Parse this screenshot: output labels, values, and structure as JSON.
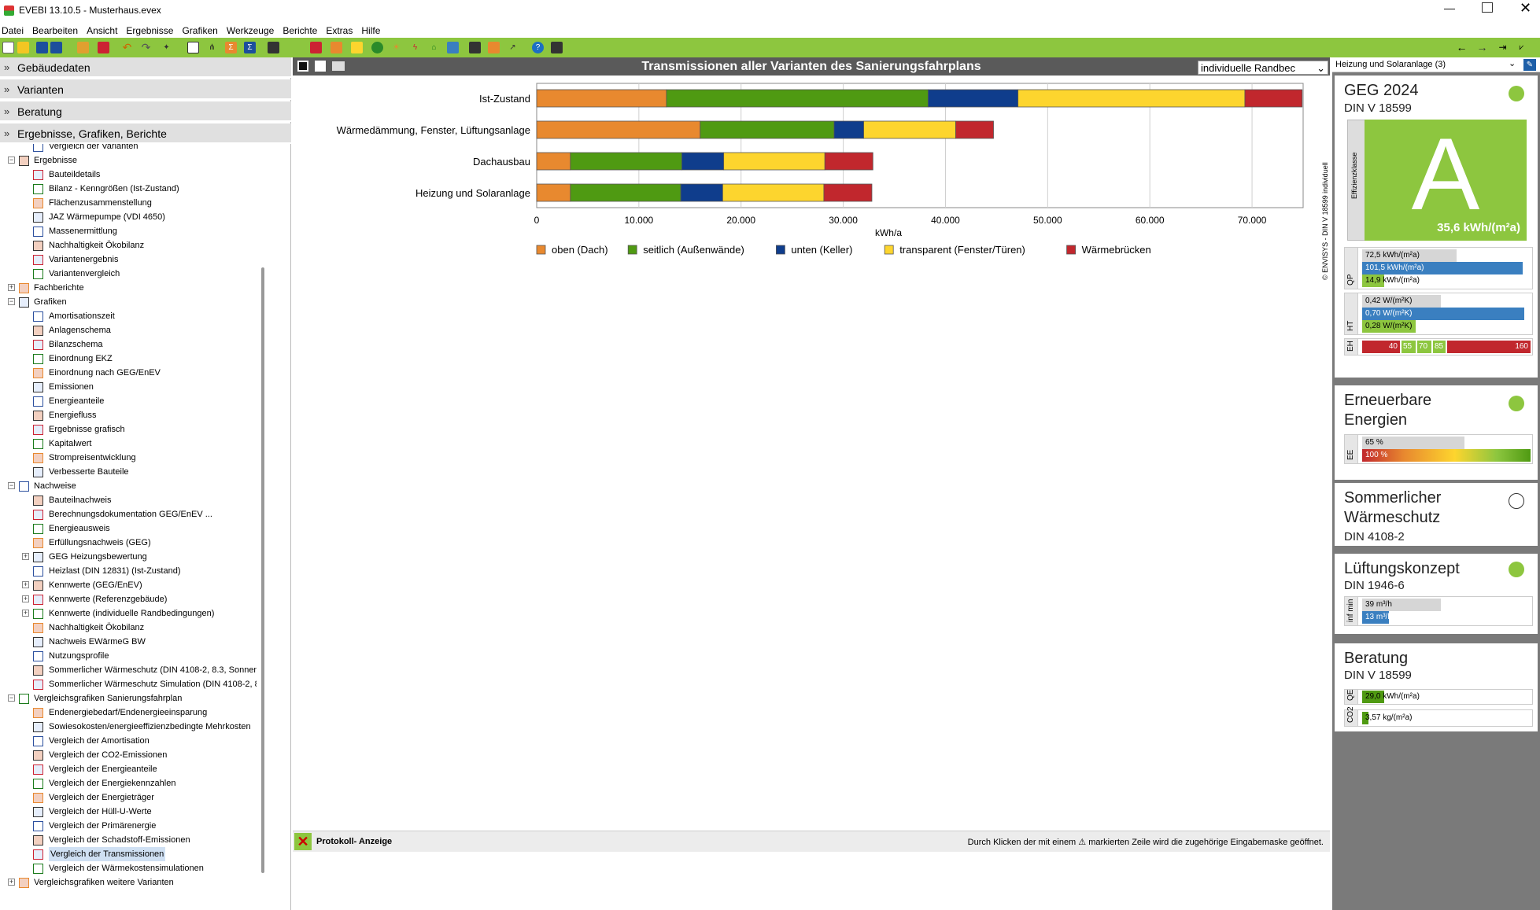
{
  "window": {
    "title": "EVEBI 13.10.5 - Musterhaus.evex"
  },
  "menu": [
    "Datei",
    "Bearbeiten",
    "Ansicht",
    "Ergebnisse",
    "Grafiken",
    "Werkzeuge",
    "Berichte",
    "Extras",
    "Hilfe"
  ],
  "sections": [
    "Gebäudedaten",
    "Varianten",
    "Beratung",
    "Ergebnisse, Grafiken, Berichte"
  ],
  "tree": [
    {
      "label": "Vergleich der Varianten",
      "level": 2
    },
    {
      "label": "Ergebnisse",
      "level": 1,
      "exp": "-"
    },
    {
      "label": "Bauteildetails",
      "level": 2
    },
    {
      "label": "Bilanz - Kenngrößen (Ist-Zustand)",
      "level": 2
    },
    {
      "label": "Flächenzusammenstellung",
      "level": 2
    },
    {
      "label": "JAZ Wärmepumpe (VDI 4650)",
      "level": 2
    },
    {
      "label": "Massenermittlung",
      "level": 2
    },
    {
      "label": "Nachhaltigkeit Ökobilanz",
      "level": 2
    },
    {
      "label": "Variantenergebnis",
      "level": 2
    },
    {
      "label": "Variantenvergleich",
      "level": 2
    },
    {
      "label": "Fachberichte",
      "level": 1,
      "exp": "+"
    },
    {
      "label": "Grafiken",
      "level": 1,
      "exp": "-"
    },
    {
      "label": "Amortisationszeit",
      "level": 2
    },
    {
      "label": "Anlagenschema",
      "level": 2
    },
    {
      "label": "Bilanzschema",
      "level": 2
    },
    {
      "label": "Einordnung EKZ",
      "level": 2
    },
    {
      "label": "Einordnung nach GEG/EnEV",
      "level": 2
    },
    {
      "label": "Emissionen",
      "level": 2
    },
    {
      "label": "Energieanteile",
      "level": 2
    },
    {
      "label": "Energiefluss",
      "level": 2
    },
    {
      "label": "Ergebnisse grafisch",
      "level": 2
    },
    {
      "label": "Kapitalwert",
      "level": 2
    },
    {
      "label": "Strompreisentwicklung",
      "level": 2
    },
    {
      "label": "Verbesserte Bauteile",
      "level": 2
    },
    {
      "label": "Nachweise",
      "level": 1,
      "exp": "-"
    },
    {
      "label": "Bauteilnachweis",
      "level": 2
    },
    {
      "label": "Berechnungsdokumentation GEG/EnEV ...",
      "level": 2
    },
    {
      "label": "Energieausweis",
      "level": 2
    },
    {
      "label": "Erfüllungsnachweis (GEG)",
      "level": 2
    },
    {
      "label": "GEG Heizungsbewertung",
      "level": 2,
      "exp": "+"
    },
    {
      "label": "Heizlast (DIN 12831) (Ist-Zustand)",
      "level": 2
    },
    {
      "label": "Kennwerte (GEG/EnEV)",
      "level": 2,
      "exp": "+"
    },
    {
      "label": "Kennwerte (Referenzgebäude)",
      "level": 2,
      "exp": "+"
    },
    {
      "label": "Kennwerte (individuelle Randbedingungen)",
      "level": 2,
      "exp": "+"
    },
    {
      "label": "Nachhaltigkeit Ökobilanz",
      "level": 2
    },
    {
      "label": "Nachweis EWärmeG BW",
      "level": 2
    },
    {
      "label": "Nutzungsprofile",
      "level": 2
    },
    {
      "label": "Sommerlicher Wärmeschutz (DIN 4108-2, 8.3, Sonnen",
      "level": 2
    },
    {
      "label": "Sommerlicher Wärmeschutz Simulation (DIN 4108-2, 8.",
      "level": 2
    },
    {
      "label": "Vergleichsgrafiken Sanierungsfahrplan",
      "level": 1,
      "exp": "-"
    },
    {
      "label": "Endenergiebedarf/Endenergieeinsparung",
      "level": 2
    },
    {
      "label": "Sowiesokosten/energieeffizienzbedingte Mehrkosten",
      "level": 2
    },
    {
      "label": "Vergleich der Amortisation",
      "level": 2
    },
    {
      "label": "Vergleich der CO2-Emissionen",
      "level": 2
    },
    {
      "label": "Vergleich der Energieanteile",
      "level": 2
    },
    {
      "label": "Vergleich der Energiekennzahlen",
      "level": 2
    },
    {
      "label": "Vergleich der Energieträger",
      "level": 2
    },
    {
      "label": "Vergleich der Hüll-U-Werte",
      "level": 2
    },
    {
      "label": "Vergleich der Primärenergie",
      "level": 2
    },
    {
      "label": "Vergleich der Schadstoff-Emissionen",
      "level": 2
    },
    {
      "label": "Vergleich der Transmissionen",
      "level": 2,
      "selected": true
    },
    {
      "label": "Vergleich der Wärmekostensimulationen",
      "level": 2
    },
    {
      "label": "Vergleichsgrafiken weitere Varianten",
      "level": 1,
      "exp": "+"
    }
  ],
  "chart_panel": {
    "title": "Transmissionen aller Varianten des Sanierungsfahrplans",
    "randbed_select": "individuelle Randbec",
    "copyright": "© ENVISYS - DIN V 18599 individuell"
  },
  "chart_data": {
    "type": "bar",
    "orientation": "horizontal",
    "stacked": true,
    "categories": [
      "Ist-Zustand",
      "Wärmedämmung, Fenster, Lüftungsanlage",
      "Dachausbau",
      "Heizung und Solaranlage"
    ],
    "series": [
      {
        "name": "oben (Dach)",
        "color": "#e8892f",
        "values": [
          12700,
          16000,
          3300,
          3300
        ]
      },
      {
        "name": "seitlich (Außenwände)",
        "color": "#4f9a12",
        "values": [
          25600,
          13100,
          10900,
          10800
        ]
      },
      {
        "name": "unten (Keller)",
        "color": "#0f3d8c",
        "values": [
          8800,
          2900,
          4100,
          4100
        ]
      },
      {
        "name": "transparent (Fenster/Türen)",
        "color": "#fdd52e",
        "values": [
          22200,
          9000,
          9900,
          9900
        ]
      },
      {
        "name": "Wärmebrücken",
        "color": "#c1272d",
        "values": [
          5600,
          3700,
          4700,
          4700
        ]
      }
    ],
    "xlabel": "kWh/a",
    "xlim": [
      0,
      75000
    ],
    "ticks": [
      0,
      10000,
      20000,
      30000,
      40000,
      50000,
      60000,
      70000
    ],
    "tick_labels": [
      "0",
      "10.000",
      "20.000",
      "30.000",
      "40.000",
      "50.000",
      "60.000",
      "70.000"
    ],
    "grid": true,
    "legend": "bottom"
  },
  "protokoll": {
    "title": "Protokoll- Anzeige",
    "hint": "Durch Klicken der mit einem ⚠ markierten Zeile wird die zugehörige Eingabemaske geöffnet."
  },
  "right": {
    "variant_select": "Heizung und Solaranlage (3)",
    "geg": {
      "title": "GEG 2024",
      "subtitle": "DIN V 18599",
      "class_label": "Effizienzklasse",
      "class": "A",
      "class_value": "35,6 kWh/(m²a)",
      "qp_label": "QP",
      "qp": [
        "72,5 kWh/(m²a)",
        "101,5 kWh/(m²a)",
        "14,9 kWh/(m²a)"
      ],
      "ht_label": "HT",
      "ht": [
        "0,42 W/(m²K)",
        "0,70 W/(m²K)",
        "0,28 W/(m²K)"
      ],
      "eh_label": "EH",
      "eh": [
        "40",
        "55",
        "70",
        "85",
        "160"
      ]
    },
    "ee": {
      "title1": "Erneuerbare",
      "title2": "Energien",
      "label": "EE",
      "bars": [
        "65 %",
        "100 %"
      ]
    },
    "sw": {
      "title1": "Sommerlicher",
      "title2": "Wärmeschutz",
      "subtitle": "DIN 4108-2"
    },
    "lk": {
      "title": "Lüftungskonzept",
      "subtitle": "DIN 1946-6",
      "label": "inf min",
      "bars": [
        "39 m³/h",
        "13 m³/h"
      ]
    },
    "ber": {
      "title": "Beratung",
      "subtitle": "DIN V 18599",
      "q_label": "QE",
      "q": "29,0 kWh/(m²a)",
      "co2_label": "CO2",
      "co2": "3,57 kg/(m²a)"
    }
  },
  "colors": {
    "accent": "#8dc63f",
    "blue": "#3a7fc0",
    "red": "#c1272d",
    "gray": "#cccccc"
  }
}
